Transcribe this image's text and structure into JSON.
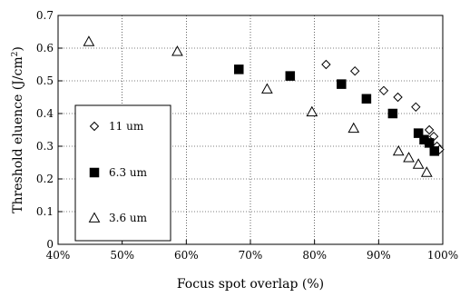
{
  "chart_data": {
    "type": "scatter",
    "xlabel": "Focus spot overlap (%)",
    "ylabel_main": "Threshold eluence (J/cm",
    "ylabel_sup": "2",
    "ylabel_close": ")",
    "xlim": [
      40,
      100
    ],
    "ylim": [
      0,
      0.7
    ],
    "x_ticks": [
      {
        "value": 40,
        "label": "40%"
      },
      {
        "value": 50,
        "label": "50%"
      },
      {
        "value": 60,
        "label": "60%"
      },
      {
        "value": 70,
        "label": "70%"
      },
      {
        "value": 80,
        "label": "80%"
      },
      {
        "value": 90,
        "label": "90%"
      },
      {
        "value": 100,
        "label": "100%"
      }
    ],
    "y_ticks": [
      {
        "value": 0,
        "label": "0"
      },
      {
        "value": 0.1,
        "label": "0.1"
      },
      {
        "value": 0.2,
        "label": "0.2"
      },
      {
        "value": 0.3,
        "label": "0.3"
      },
      {
        "value": 0.4,
        "label": "0.4"
      },
      {
        "value": 0.5,
        "label": "0.5"
      },
      {
        "value": 0.6,
        "label": "0.6"
      },
      {
        "value": 0.7,
        "label": "0.7"
      }
    ],
    "grid": true,
    "legend_position": "left-bottom",
    "series": [
      {
        "name": "11 um",
        "marker": "diamond-open",
        "points": [
          [
            81.8,
            0.55
          ],
          [
            86.3,
            0.53
          ],
          [
            90.8,
            0.47
          ],
          [
            93.0,
            0.45
          ],
          [
            95.8,
            0.42
          ],
          [
            97.9,
            0.35
          ],
          [
            98.6,
            0.33
          ],
          [
            99.1,
            0.3
          ],
          [
            99.5,
            0.29
          ]
        ]
      },
      {
        "name": "6.3 um",
        "marker": "square-filled",
        "points": [
          [
            68.2,
            0.535
          ],
          [
            76.2,
            0.515
          ],
          [
            84.2,
            0.49
          ],
          [
            88.1,
            0.445
          ],
          [
            92.2,
            0.4
          ],
          [
            96.2,
            0.34
          ],
          [
            97.1,
            0.32
          ],
          [
            97.9,
            0.31
          ],
          [
            98.7,
            0.285
          ]
        ]
      },
      {
        "name": "3.6 um",
        "marker": "triangle-open",
        "points": [
          [
            44.8,
            0.62
          ],
          [
            58.6,
            0.59
          ],
          [
            72.6,
            0.475
          ],
          [
            79.6,
            0.405
          ],
          [
            86.1,
            0.355
          ],
          [
            93.1,
            0.285
          ],
          [
            94.7,
            0.265
          ],
          [
            96.2,
            0.245
          ],
          [
            97.5,
            0.22
          ]
        ]
      }
    ]
  }
}
